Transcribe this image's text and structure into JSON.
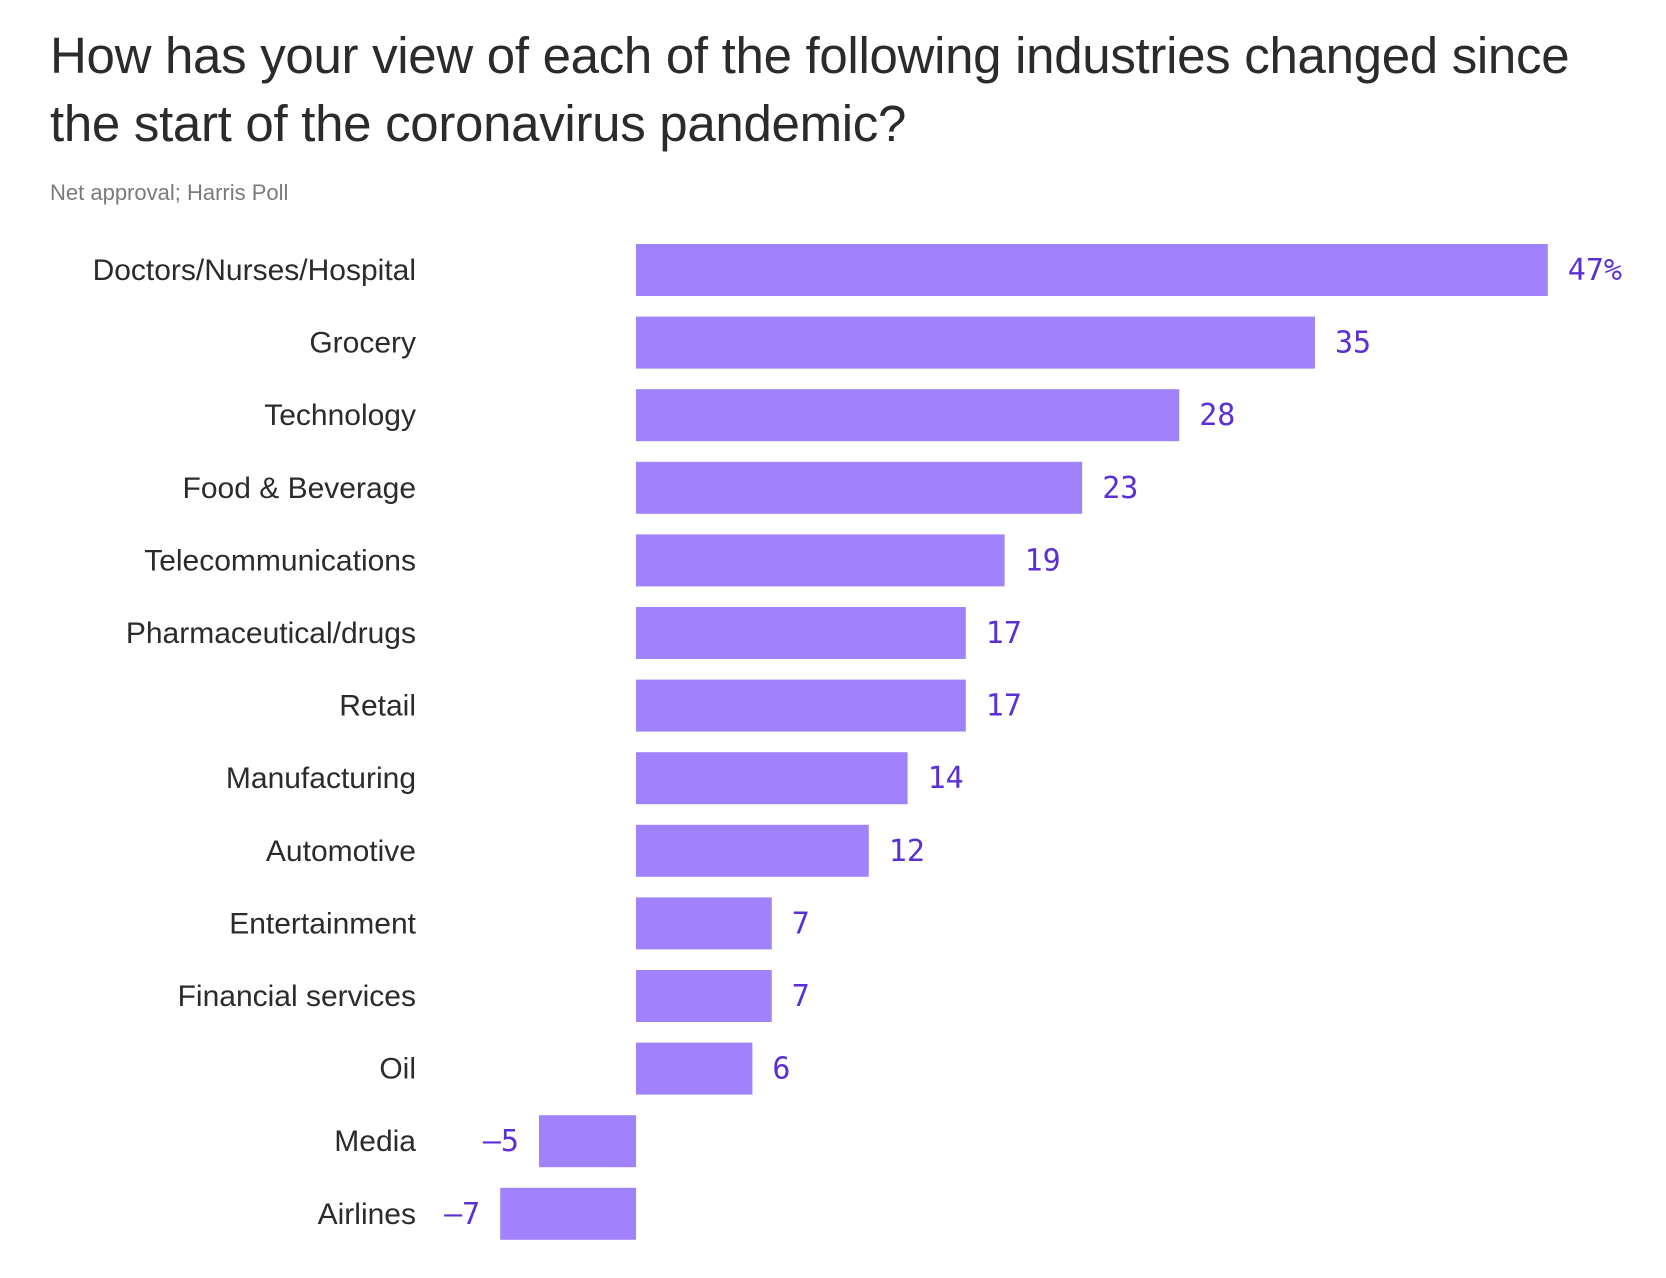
{
  "title": "How has your view of each of the following industries changed since the start of the coronavirus pandemic?",
  "subtitle": "Net approval; Harris Poll",
  "colors": {
    "bar": "#a083fc",
    "value_label": "#5b2fd4",
    "text": "#2b2b2b",
    "subtitle": "#7a7a7a"
  },
  "chart_data": {
    "type": "bar",
    "orientation": "horizontal",
    "title": "How has your view of each of the following industries changed since the start of the coronavirus pandemic?",
    "subtitle": "Net approval; Harris Poll",
    "categories": [
      "Doctors/Nurses/Hospital",
      "Grocery",
      "Technology",
      "Food & Beverage",
      "Telecommunications",
      "Pharmaceutical/drugs",
      "Retail",
      "Manufacturing",
      "Automotive",
      "Entertainment",
      "Financial services",
      "Oil",
      "Media",
      "Airlines"
    ],
    "values": [
      47,
      35,
      28,
      23,
      19,
      17,
      17,
      14,
      12,
      7,
      7,
      6,
      -5,
      -7
    ],
    "value_labels": [
      "47%",
      "35",
      "28",
      "23",
      "19",
      "17",
      "17",
      "14",
      "12",
      "7",
      "7",
      "6",
      "–5",
      "–7"
    ],
    "xlim": [
      -7,
      47
    ],
    "grid": false,
    "legend": "none"
  }
}
